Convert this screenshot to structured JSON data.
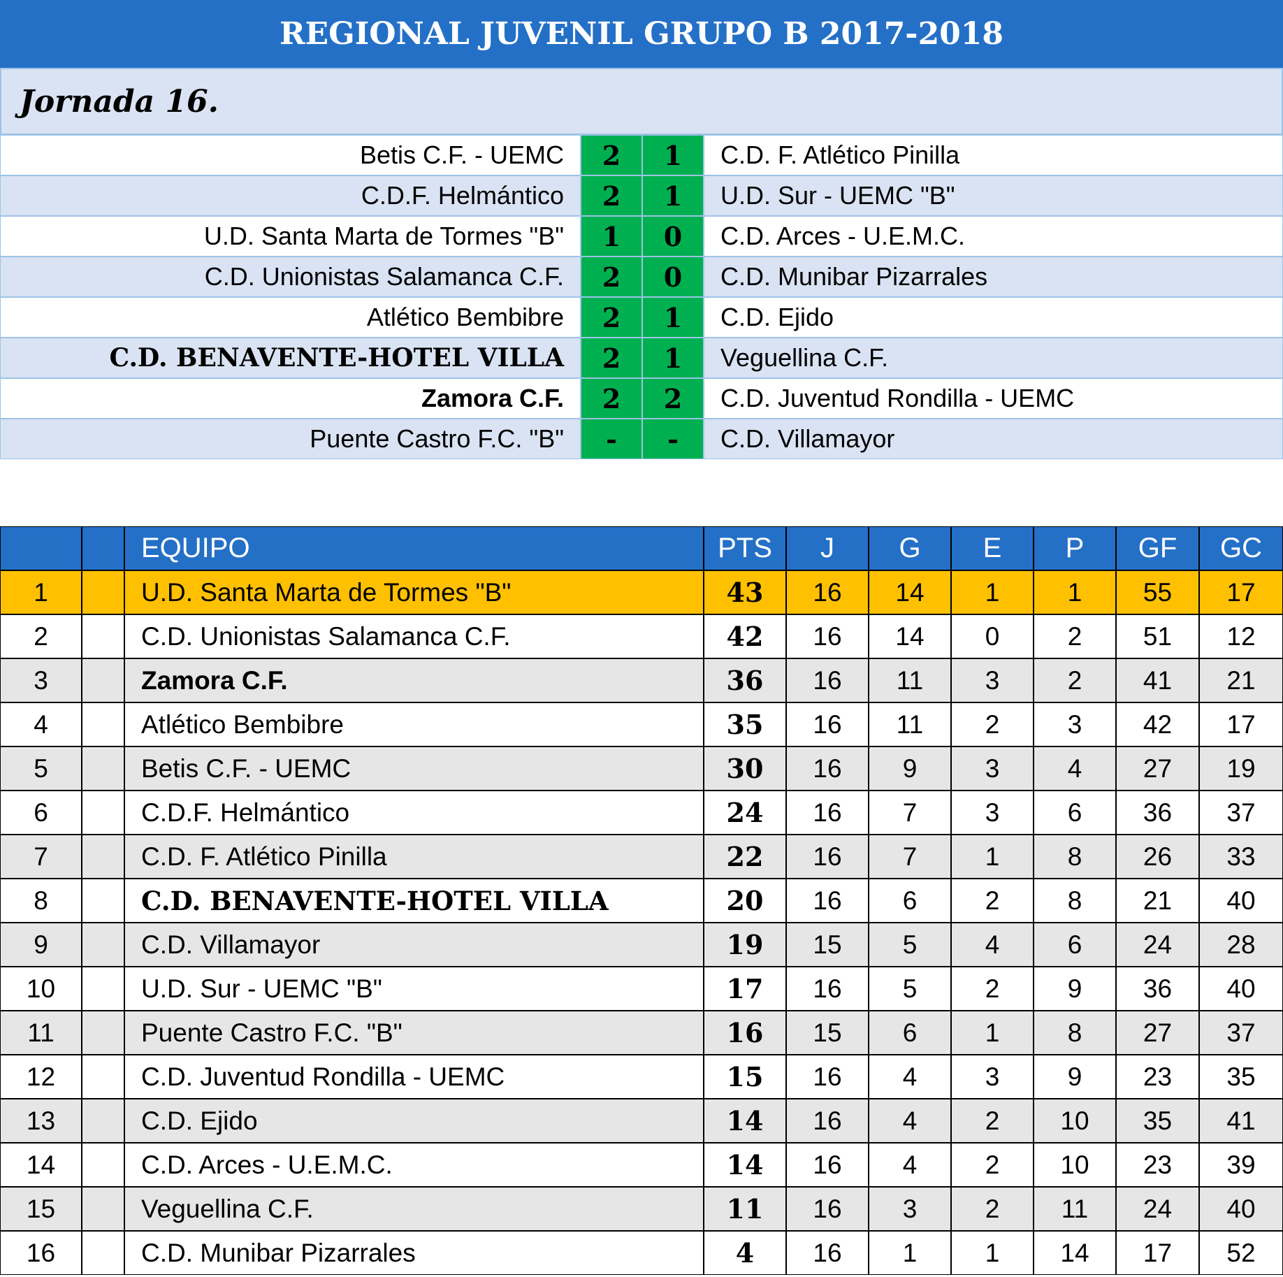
{
  "header": {
    "title": "REGIONAL JUVENIL GRUPO B 2017-2018",
    "round": "Jornada 16."
  },
  "matches": [
    {
      "home": "Betis C.F. - UEMC",
      "home_goals": 2,
      "away_goals": 1,
      "away": "C.D. F. Atlético Pinilla"
    },
    {
      "home": "C.D.F. Helmántico",
      "home_goals": 2,
      "away_goals": 1,
      "away": "U.D. Sur - UEMC \"B\""
    },
    {
      "home": "U.D. Santa Marta de Tormes \"B\"",
      "home_goals": 1,
      "away_goals": 0,
      "away": "C.D. Arces - U.E.M.C."
    },
    {
      "home": "C.D. Unionistas Salamanca C.F.",
      "home_goals": 2,
      "away_goals": 0,
      "away": "C.D. Munibar Pizarrales"
    },
    {
      "home": "Atlético Bembibre",
      "home_goals": 2,
      "away_goals": 1,
      "away": "C.D. Ejido"
    },
    {
      "home": "C.D. BENAVENTE-HOTEL VILLA",
      "home_goals": 2,
      "away_goals": 1,
      "away": "Veguellina C.F.",
      "home_style": "serif-bold"
    },
    {
      "home": "Zamora C.F.",
      "home_goals": 2,
      "away_goals": 2,
      "away": "C.D. Juventud Rondilla - UEMC",
      "home_style": "bold"
    },
    {
      "home": "Puente Castro F.C. \"B\"",
      "home_goals": "-",
      "away_goals": "-",
      "away": "C.D. Villamayor"
    }
  ],
  "standings": {
    "columns": [
      "EQUIPO",
      "PTS",
      "J",
      "G",
      "E",
      "P",
      "GF",
      "GC"
    ],
    "rows": [
      {
        "pos": 1,
        "team": "U.D. Santa Marta de Tormes \"B\"",
        "pts": 43,
        "j": 16,
        "g": 14,
        "e": 1,
        "p": 1,
        "gf": 55,
        "gc": 17,
        "color": "#ffc000"
      },
      {
        "pos": 2,
        "team": "C.D. Unionistas Salamanca C.F.",
        "pts": 42,
        "j": 16,
        "g": 14,
        "e": 0,
        "p": 2,
        "gf": 51,
        "gc": 12
      },
      {
        "pos": 3,
        "team": "Zamora C.F.",
        "pts": 36,
        "j": 16,
        "g": 11,
        "e": 3,
        "p": 2,
        "gf": 41,
        "gc": 21,
        "style": "bold"
      },
      {
        "pos": 4,
        "team": "Atlético Bembibre",
        "pts": 35,
        "j": 16,
        "g": 11,
        "e": 2,
        "p": 3,
        "gf": 42,
        "gc": 17
      },
      {
        "pos": 5,
        "team": "Betis C.F. - UEMC",
        "pts": 30,
        "j": 16,
        "g": 9,
        "e": 3,
        "p": 4,
        "gf": 27,
        "gc": 19
      },
      {
        "pos": 6,
        "team": "C.D.F. Helmántico",
        "pts": 24,
        "j": 16,
        "g": 7,
        "e": 3,
        "p": 6,
        "gf": 36,
        "gc": 37
      },
      {
        "pos": 7,
        "team": "C.D. F. Atlético Pinilla",
        "pts": 22,
        "j": 16,
        "g": 7,
        "e": 1,
        "p": 8,
        "gf": 26,
        "gc": 33
      },
      {
        "pos": 8,
        "team": "C.D. BENAVENTE-HOTEL VILLA",
        "pts": 20,
        "j": 16,
        "g": 6,
        "e": 2,
        "p": 8,
        "gf": 21,
        "gc": 40,
        "style": "serif-bold"
      },
      {
        "pos": 9,
        "team": "C.D. Villamayor",
        "pts": 19,
        "j": 15,
        "g": 5,
        "e": 4,
        "p": 6,
        "gf": 24,
        "gc": 28
      },
      {
        "pos": 10,
        "team": "U.D. Sur - UEMC \"B\"",
        "pts": 17,
        "j": 16,
        "g": 5,
        "e": 2,
        "p": 9,
        "gf": 36,
        "gc": 40
      },
      {
        "pos": 11,
        "team": "Puente Castro F.C. \"B\"",
        "pts": 16,
        "j": 15,
        "g": 6,
        "e": 1,
        "p": 8,
        "gf": 27,
        "gc": 37
      },
      {
        "pos": 12,
        "team": "C.D. Juventud Rondilla - UEMC",
        "pts": 15,
        "j": 16,
        "g": 4,
        "e": 3,
        "p": 9,
        "gf": 23,
        "gc": 35
      },
      {
        "pos": 13,
        "team": "C.D. Ejido",
        "pts": 14,
        "j": 16,
        "g": 4,
        "e": 2,
        "p": 10,
        "gf": 35,
        "gc": 41
      },
      {
        "pos": 14,
        "team": "C.D. Arces - U.E.M.C.",
        "pts": 14,
        "j": 16,
        "g": 4,
        "e": 2,
        "p": 10,
        "gf": 23,
        "gc": 39
      },
      {
        "pos": 15,
        "team": "Veguellina C.F.",
        "pts": 11,
        "j": 16,
        "g": 3,
        "e": 2,
        "p": 11,
        "gf": 24,
        "gc": 40
      },
      {
        "pos": 16,
        "team": "C.D. Munibar Pizarrales",
        "pts": 4,
        "j": 16,
        "g": 1,
        "e": 1,
        "p": 14,
        "gf": 17,
        "gc": 52
      }
    ]
  }
}
